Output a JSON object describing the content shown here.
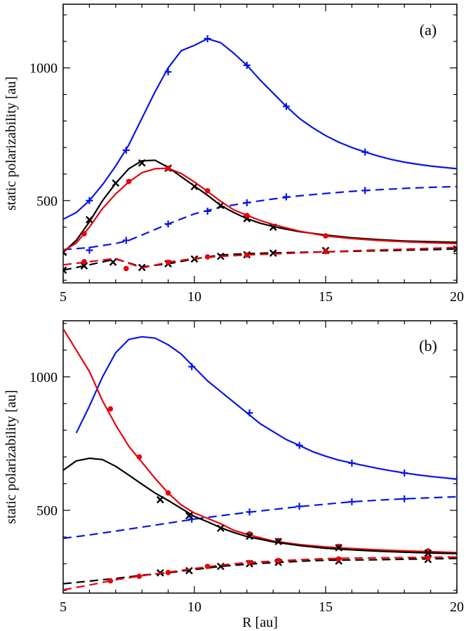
{
  "colors": {
    "black": "#000000",
    "red": "#e8000b",
    "blue": "#0a14e6"
  },
  "chart_data": [
    {
      "type": "line",
      "panel_label": "(a)",
      "xlabel": "",
      "ylabel": "static polarizability [au]",
      "xlim": [
        5,
        20
      ],
      "ylim": [
        190,
        1240
      ],
      "xticks": [
        "5",
        "10",
        "15",
        "20"
      ],
      "yticks": [
        "500",
        "1000"
      ],
      "series": [
        {
          "name": "blue-solid",
          "color": "blue",
          "dash": false,
          "marker": "plus",
          "x": [
            5,
            5.5,
            6,
            6.5,
            7,
            7.5,
            8,
            8.5,
            9,
            9.5,
            10,
            10.5,
            11,
            11.5,
            12,
            12.5,
            13,
            13.5,
            14,
            14.5,
            15,
            15.5,
            16,
            16.5,
            17,
            17.5,
            18,
            18.5,
            19,
            19.5,
            20
          ],
          "y": [
            430,
            455,
            500,
            560,
            630,
            710,
            810,
            910,
            1000,
            1065,
            1085,
            1110,
            1095,
            1055,
            1010,
            955,
            905,
            855,
            810,
            775,
            745,
            720,
            700,
            683,
            668,
            655,
            645,
            637,
            630,
            625,
            620
          ],
          "marker_x": [
            6,
            7.4,
            9,
            10.5,
            12,
            13.5,
            16.5
          ],
          "marker_y": [
            500,
            690,
            985,
            1110,
            1010,
            855,
            683
          ]
        },
        {
          "name": "blue-dashed",
          "color": "blue",
          "dash": true,
          "marker": "plus",
          "x": [
            5,
            6,
            7,
            7.5,
            8,
            9,
            10,
            11,
            12,
            13,
            14,
            15,
            16,
            17,
            18,
            19,
            20
          ],
          "y": [
            315,
            323,
            338,
            350,
            370,
            412,
            450,
            475,
            492,
            506,
            518,
            527,
            535,
            541,
            546,
            550,
            553
          ],
          "marker_x": [
            6,
            7.4,
            9,
            10.5,
            12,
            13.5,
            16.5
          ],
          "marker_y": [
            313,
            350,
            412,
            460,
            492,
            514,
            538
          ]
        },
        {
          "name": "black-solid",
          "color": "black",
          "dash": false,
          "marker": "x",
          "x": [
            5,
            5.5,
            6,
            6.5,
            7,
            7.5,
            8,
            8.5,
            9,
            9.5,
            10,
            10.5,
            11,
            11.5,
            12,
            12.5,
            13,
            13.5,
            14,
            15,
            16,
            17,
            18,
            19,
            20
          ],
          "y": [
            305,
            350,
            420,
            500,
            565,
            620,
            650,
            652,
            625,
            590,
            555,
            520,
            482,
            455,
            432,
            415,
            402,
            392,
            383,
            370,
            360,
            353,
            348,
            345,
            343
          ],
          "marker_x": [
            5,
            6,
            7,
            8,
            9,
            10,
            11,
            12,
            13
          ],
          "marker_y": [
            305,
            428,
            566,
            642,
            622,
            553,
            482,
            432,
            400
          ]
        },
        {
          "name": "red-solid",
          "color": "red",
          "dash": false,
          "marker": "dot",
          "x": [
            5,
            5.5,
            6,
            6.5,
            7,
            7.5,
            8,
            8.5,
            9,
            9.5,
            10,
            10.5,
            11,
            11.5,
            12,
            12.5,
            13,
            13.5,
            14,
            15,
            16,
            17,
            18,
            19,
            20
          ],
          "y": [
            310,
            340,
            400,
            470,
            525,
            570,
            605,
            620,
            622,
            602,
            570,
            535,
            497,
            465,
            445,
            425,
            410,
            397,
            385,
            367,
            357,
            350,
            345,
            341,
            338
          ],
          "marker_x": [
            5.8,
            7.5,
            9,
            10.5,
            12,
            15
          ],
          "marker_y": [
            375,
            572,
            622,
            537,
            444,
            367
          ]
        },
        {
          "name": "black-dashed",
          "color": "black",
          "dash": true,
          "marker": "x",
          "x": [
            5,
            6,
            7,
            8,
            9,
            10,
            11,
            12,
            13,
            14,
            15,
            16,
            17,
            18,
            19,
            20
          ],
          "y": [
            238,
            258,
            280,
            250,
            262,
            280,
            295,
            300,
            303,
            305,
            307,
            309,
            311,
            313,
            315,
            318
          ],
          "marker_x": [
            5,
            5.8,
            6.9,
            8,
            9,
            10,
            11,
            12,
            13,
            15,
            20
          ],
          "marker_y": [
            238,
            254,
            268,
            248,
            262,
            280,
            290,
            296,
            302,
            312,
            318
          ]
        },
        {
          "name": "red-dashed",
          "color": "red",
          "dash": true,
          "marker": "dot",
          "x": [
            5,
            6,
            7,
            8,
            9,
            10,
            11,
            12,
            13,
            14,
            15,
            16,
            17,
            18,
            19,
            20
          ],
          "y": [
            258,
            270,
            282,
            246,
            268,
            282,
            290,
            295,
            299,
            303,
            307,
            311,
            314,
            317,
            320,
            323
          ],
          "marker_x": [
            5.8,
            7.4,
            9,
            10.5,
            12,
            15
          ],
          "marker_y": [
            270,
            244,
            268,
            288,
            295,
            308
          ]
        }
      ]
    },
    {
      "type": "line",
      "panel_label": "(b)",
      "xlabel": "R [au]",
      "ylabel": "static polarizability [au]",
      "xlim": [
        5,
        20
      ],
      "ylim": [
        190,
        1210
      ],
      "xticks": [
        "5",
        "10",
        "15",
        "20"
      ],
      "yticks": [
        "500",
        "1000"
      ],
      "series": [
        {
          "name": "blue-solid",
          "color": "blue",
          "dash": false,
          "marker": "plus",
          "x": [
            5.5,
            6,
            6.5,
            7,
            7.5,
            8,
            8.5,
            9,
            9.5,
            10,
            10.5,
            11,
            11.5,
            12,
            12.5,
            13,
            13.5,
            14,
            14.5,
            15,
            15.5,
            16,
            16.5,
            17,
            17.5,
            18,
            18.5,
            19,
            19.5,
            20
          ],
          "y": [
            790,
            890,
            1000,
            1090,
            1140,
            1150,
            1145,
            1120,
            1085,
            1035,
            985,
            945,
            905,
            865,
            825,
            795,
            765,
            743,
            720,
            703,
            688,
            677,
            667,
            657,
            648,
            640,
            633,
            627,
            622,
            617
          ],
          "marker_x": [
            9.9,
            12.1,
            14,
            16,
            18,
            20
          ],
          "marker_y": [
            1038,
            865,
            743,
            677,
            640,
            617
          ]
        },
        {
          "name": "blue-dashed",
          "color": "blue",
          "dash": true,
          "marker": "plus",
          "x": [
            5,
            6,
            7,
            8,
            9,
            10,
            11,
            12,
            13,
            14,
            15,
            16,
            17,
            18,
            19,
            20
          ],
          "y": [
            395,
            408,
            422,
            437,
            452,
            467,
            480,
            492,
            503,
            514,
            523,
            532,
            538,
            543,
            547,
            551
          ],
          "marker_x": [
            9.9,
            12.1,
            14,
            16,
            18
          ],
          "marker_y": [
            467,
            494,
            515,
            532,
            543
          ]
        },
        {
          "name": "red-solid",
          "color": "red",
          "dash": false,
          "marker": "dot",
          "x": [
            5,
            5.5,
            6,
            6.5,
            7,
            7.5,
            8,
            8.5,
            9,
            9.5,
            10,
            10.5,
            11,
            11.5,
            12,
            13,
            14,
            15,
            16,
            17,
            18,
            19,
            20
          ],
          "y": [
            1180,
            1100,
            1020,
            910,
            820,
            740,
            680,
            620,
            565,
            520,
            490,
            470,
            450,
            425,
            410,
            385,
            372,
            363,
            357,
            352,
            348,
            345,
            342
          ],
          "marker_x": [
            6.8,
            7.9,
            9,
            12.1,
            13.2,
            15.5,
            18.9
          ],
          "marker_y": [
            880,
            700,
            565,
            412,
            387,
            365,
            348
          ]
        },
        {
          "name": "black-solid",
          "color": "black",
          "dash": false,
          "marker": "x",
          "x": [
            5,
            5.5,
            6,
            6.5,
            7,
            7.5,
            8,
            8.5,
            9,
            9.5,
            10,
            10.5,
            11,
            11.5,
            12,
            13,
            14,
            15,
            16,
            17,
            18,
            19,
            20
          ],
          "y": [
            650,
            685,
            695,
            690,
            665,
            632,
            598,
            565,
            537,
            507,
            477,
            457,
            435,
            417,
            402,
            382,
            368,
            358,
            352,
            347,
            343,
            340,
            338
          ],
          "marker_x": [
            8.7,
            9.8,
            11,
            12.1,
            13.2,
            15.5,
            18.9
          ],
          "marker_y": [
            540,
            480,
            433,
            403,
            383,
            360,
            340
          ]
        },
        {
          "name": "black-dashed",
          "color": "black",
          "dash": true,
          "marker": "x",
          "x": [
            5,
            6,
            7,
            8,
            9,
            10,
            11,
            12,
            13,
            14,
            15,
            16,
            17,
            18,
            19,
            20
          ],
          "y": [
            225,
            235,
            245,
            257,
            266,
            278,
            290,
            298,
            304,
            309,
            313,
            314,
            315,
            317,
            318,
            320
          ],
          "marker_x": [
            8.7,
            9.8,
            11,
            12.1,
            13.2,
            15.5,
            18.9
          ],
          "marker_y": [
            266,
            274,
            290,
            300,
            305,
            310,
            316
          ]
        },
        {
          "name": "red-dashed",
          "color": "red",
          "dash": true,
          "marker": "dot",
          "x": [
            5,
            6,
            7,
            8,
            9,
            10,
            11,
            12,
            13,
            14,
            15,
            16,
            17,
            18,
            19,
            20
          ],
          "y": [
            202,
            220,
            240,
            255,
            268,
            282,
            295,
            304,
            310,
            315,
            319,
            321,
            322,
            323,
            324,
            325
          ],
          "marker_x": [
            6.8,
            7.9,
            9,
            10.5,
            12.1,
            13.2,
            15.5,
            18.9
          ],
          "marker_y": [
            236,
            253,
            267,
            290,
            305,
            312,
            318,
            322
          ]
        }
      ]
    }
  ]
}
